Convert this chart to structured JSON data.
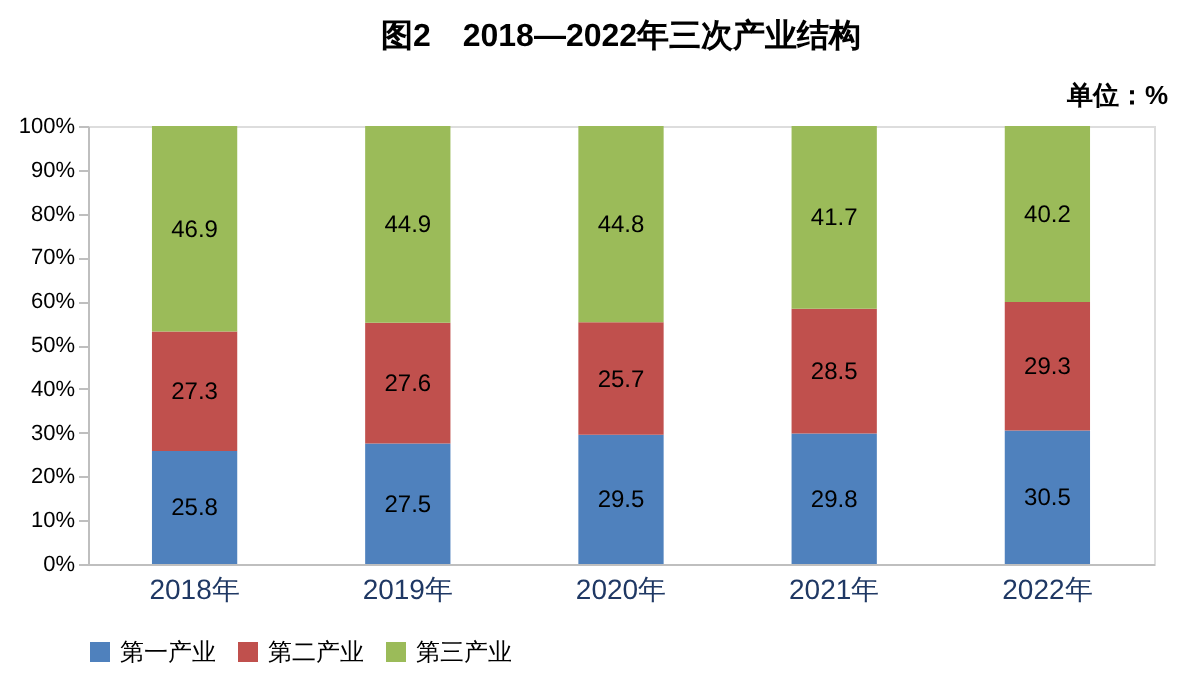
{
  "chart_data": {
    "type": "bar",
    "stacked": true,
    "title": "图2　2018—2022年三次产业结构",
    "annotations": [
      "单位：%"
    ],
    "categories": [
      "2018年",
      "2019年",
      "2020年",
      "2021年",
      "2022年"
    ],
    "series": [
      {
        "name": "第一产业",
        "color": "#4f81bd",
        "values": [
          25.8,
          27.5,
          29.5,
          29.8,
          30.5
        ]
      },
      {
        "name": "第二产业",
        "color": "#c0504d",
        "values": [
          27.3,
          27.6,
          25.7,
          28.5,
          29.3
        ]
      },
      {
        "name": "第三产业",
        "color": "#9bbb59",
        "values": [
          46.9,
          44.9,
          44.8,
          41.7,
          40.2
        ]
      }
    ],
    "ylim": [
      0,
      100
    ],
    "yticks": [
      {
        "value": 0,
        "label": "0%"
      },
      {
        "value": 10,
        "label": "10%"
      },
      {
        "value": 20,
        "label": "20%"
      },
      {
        "value": 30,
        "label": "30%"
      },
      {
        "value": 40,
        "label": "40%"
      },
      {
        "value": 50,
        "label": "50%"
      },
      {
        "value": 60,
        "label": "60%"
      },
      {
        "value": 70,
        "label": "70%"
      },
      {
        "value": 80,
        "label": "80%"
      },
      {
        "value": 90,
        "label": "90%"
      },
      {
        "value": 100,
        "label": "100%"
      }
    ],
    "data_labels": true,
    "grid": false,
    "legend": "bottom"
  }
}
